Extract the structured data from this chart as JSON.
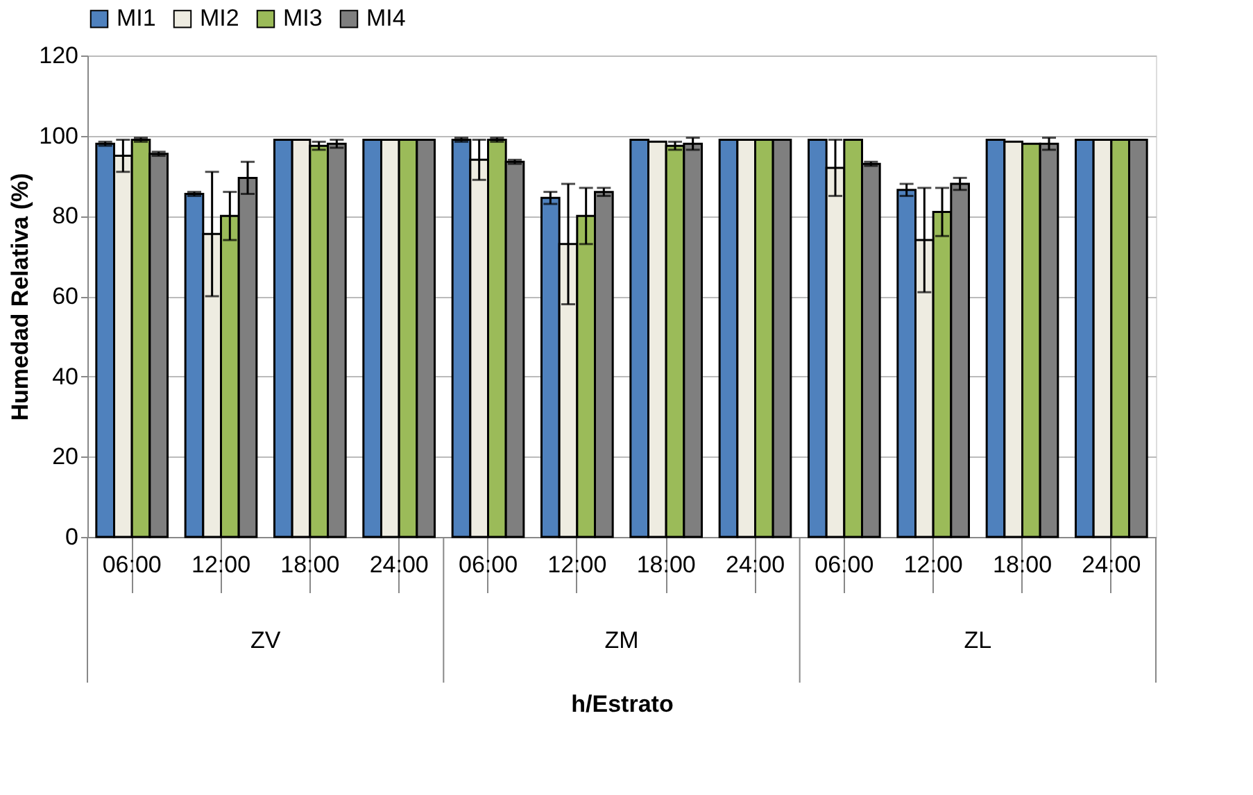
{
  "chart_data": {
    "type": "bar",
    "xlabel": "h/Estrato",
    "ylabel": "Humedad Relativa (%)",
    "categories": [
      "06:00",
      "12:00",
      "18:00",
      "24:00",
      "06:00",
      "12:00",
      "18:00",
      "24:00",
      "06:00",
      "12:00",
      "18:00",
      "24:00"
    ],
    "annotations": [
      "ZV",
      "ZM",
      "ZL"
    ],
    "series": [
      {
        "name": "MI1",
        "color": "#4f81bd",
        "values": [
          98,
          85.5,
          99,
          99,
          99,
          84.5,
          99,
          99,
          99,
          86.5,
          99,
          99
        ],
        "errors": [
          0.5,
          0.5,
          null,
          null,
          0.5,
          1.5,
          null,
          null,
          null,
          1.5,
          null,
          null
        ]
      },
      {
        "name": "MI2",
        "color": "#eeece1",
        "values": [
          95,
          75.5,
          99,
          99,
          94,
          73,
          98.5,
          99,
          92,
          74,
          98.5,
          99
        ],
        "errors": [
          4,
          15.5,
          null,
          null,
          5,
          15,
          null,
          null,
          7,
          13,
          null,
          null
        ]
      },
      {
        "name": "MI3",
        "color": "#9bbb59",
        "values": [
          99,
          80,
          97.5,
          99,
          99,
          80,
          97.5,
          99,
          99,
          81,
          98,
          99
        ],
        "errors": [
          0.5,
          6,
          1,
          null,
          0.5,
          7,
          1,
          null,
          null,
          6,
          null,
          null
        ]
      },
      {
        "name": "MI4",
        "color": "#7f7f7f",
        "values": [
          95.5,
          89.5,
          98,
          99,
          93.5,
          86,
          98,
          99,
          93,
          88,
          98,
          99
        ],
        "errors": [
          0.5,
          4,
          1,
          null,
          0.5,
          1,
          1.5,
          null,
          0.5,
          1.5,
          1.5,
          null
        ]
      }
    ],
    "ylim": [
      0,
      120
    ],
    "yticks": [
      0,
      20,
      40,
      60,
      80,
      100,
      120
    ],
    "grid": "y",
    "legend": "top"
  }
}
